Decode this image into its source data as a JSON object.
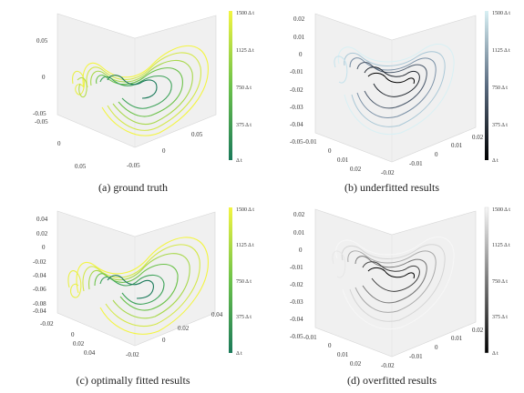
{
  "chart_data": [
    {
      "type": "line3d",
      "caption": "(a) ground truth",
      "colormap": "green-yellow",
      "colorbar_ticks": [
        "1500 Δ t",
        "1125 Δ t",
        "750 Δ t",
        "375 Δ t",
        "Δ t"
      ],
      "z_ticks": [
        "0.05",
        "0",
        "-0.05"
      ],
      "x_ticks": [
        "-0.05",
        "0",
        "0.05"
      ],
      "y_ticks": [
        "-0.05",
        "0",
        "0.05"
      ]
    },
    {
      "type": "line3d",
      "caption": "(b) underfitted results",
      "colormap": "black-lightblue",
      "colorbar_ticks": [
        "1500 Δ t",
        "1125 Δ t",
        "750 Δ t",
        "375 Δ t",
        "Δ t"
      ],
      "z_ticks": [
        "0.02",
        "0.01",
        "0",
        "-0.01",
        "-0.02",
        "-0.03",
        "-0.04",
        "-0.05"
      ],
      "x_ticks": [
        "-0.02",
        "-0.01",
        "0",
        "0.01",
        "0.02"
      ],
      "y_ticks": [
        "-0.01",
        "0",
        "0.01",
        "0.02"
      ]
    },
    {
      "type": "line3d",
      "caption": "(c) optimally fitted results",
      "colormap": "green-yellow",
      "colorbar_ticks": [
        "1500 Δ t",
        "1125 Δ t",
        "750 Δ t",
        "375 Δ t",
        "Δ t"
      ],
      "z_ticks": [
        "0.04",
        "0.02",
        "0",
        "-0.02",
        "-0.04",
        "-0.06",
        "-0.08"
      ],
      "x_ticks": [
        "-0.02",
        "0",
        "0.02",
        "0.04"
      ],
      "y_ticks": [
        "-0.04",
        "-0.02",
        "0",
        "0.02",
        "0.04"
      ]
    },
    {
      "type": "line3d",
      "caption": "(d) overfitted results",
      "colormap": "black-white",
      "colorbar_ticks": [
        "1500 Δ t",
        "1125 Δ t",
        "750 Δ t",
        "375 Δ t",
        "Δ t"
      ],
      "z_ticks": [
        "0.02",
        "0.01",
        "0",
        "-0.01",
        "-0.02",
        "-0.03",
        "-0.04",
        "-0.05"
      ],
      "x_ticks": [
        "-0.02",
        "-0.01",
        "0",
        "0.01",
        "0.02"
      ],
      "y_ticks": [
        "-0.01",
        "0",
        "0.01",
        "0.02"
      ]
    }
  ]
}
